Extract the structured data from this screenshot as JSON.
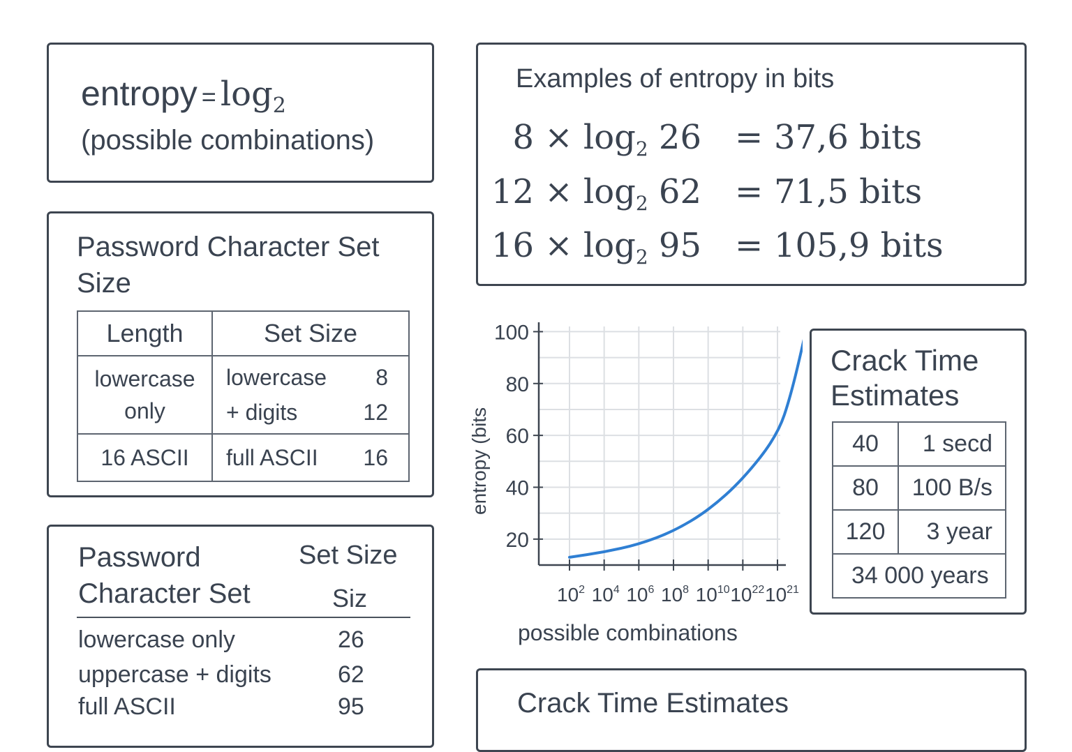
{
  "formula": {
    "lhs": "entropy",
    "equals": "=",
    "log": "log",
    "base": "2",
    "argument": "(possible combinations)"
  },
  "examples": {
    "title": "Examples of entropy in bits",
    "rows": [
      {
        "length": "8",
        "times": "×",
        "log": "log",
        "base": "2",
        "set": "26",
        "equals": "=",
        "result": "37,6 bits"
      },
      {
        "length": "12",
        "times": "×",
        "log": "log",
        "base": "2",
        "set": "62",
        "equals": "=",
        "result": "71,5 bits"
      },
      {
        "length": "16",
        "times": "×",
        "log": "log",
        "base": "2",
        "set": "95",
        "equals": "=",
        "result": "105,9 bits"
      }
    ]
  },
  "charset_table": {
    "title": "Password Character Set Size",
    "headers": [
      "Length",
      "Set Size"
    ],
    "rows": [
      {
        "c1": "lowercase only",
        "c2_lines": [
          {
            "label": "lowercase",
            "value": "8"
          },
          {
            "label": "+ digits",
            "value": "12"
          }
        ]
      },
      {
        "c1": "16 ASCII",
        "c2_lines": [
          {
            "label": "full ASCII",
            "value": "16"
          }
        ]
      }
    ]
  },
  "chart_data": {
    "type": "line",
    "title": "",
    "xlabel": "possible combinations",
    "ylabel": "entropy (bits",
    "x_tick_labels": [
      {
        "base": "10",
        "exp": "2"
      },
      {
        "base": "10",
        "exp": "4"
      },
      {
        "base": "10",
        "exp": "6"
      },
      {
        "base": "10",
        "exp": "8"
      },
      {
        "base": "10",
        "exp": "10"
      },
      {
        "base": "10",
        "exp": "22"
      },
      {
        "base": "10",
        "exp": "21"
      }
    ],
    "y_ticks": [
      20,
      40,
      60,
      80,
      100
    ],
    "ylim": [
      10,
      102
    ],
    "grid": true,
    "line_color": "#2f7fd3",
    "series": [
      {
        "x_index": [
          0,
          1,
          2,
          3,
          4,
          5,
          6,
          6.4,
          6.85
        ],
        "values": [
          13,
          15,
          18,
          23,
          31,
          43,
          60,
          76,
          102
        ]
      }
    ]
  },
  "crack_small": {
    "title": "Crack Time Estimates",
    "rows": [
      {
        "a": "40",
        "b": "1 secd"
      },
      {
        "a": "80",
        "b": "100 B/s"
      },
      {
        "a": "120",
        "b": "3 year"
      }
    ],
    "full_row": "34 000 years"
  },
  "charset_list": {
    "header_left": "Password Character Set",
    "header_right": "Set Size",
    "header_right_sub": "Siz",
    "items": [
      {
        "label": "lowercase only",
        "value": "26"
      },
      {
        "label": "uppercase + digits",
        "value": "62"
      },
      {
        "label": "full ASCII",
        "value": "95"
      }
    ]
  },
  "crack_bottom": {
    "title": "Crack Time Estimates"
  }
}
